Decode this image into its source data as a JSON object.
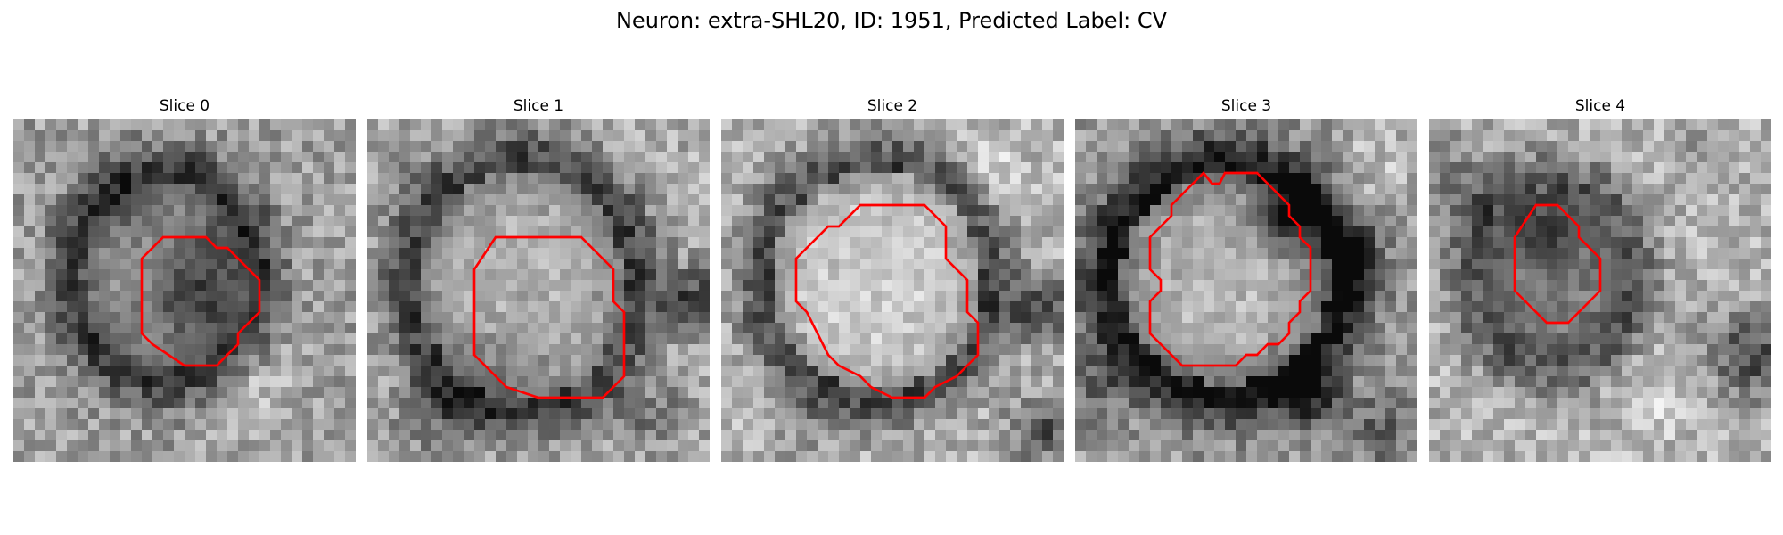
{
  "figure": {
    "title": "Neuron: extra-SHL20, ID: 1951, Predicted Label: CV"
  },
  "slices": [
    {
      "title": "Slice 0",
      "contour_color": "#ff0000",
      "shade": "gray"
    },
    {
      "title": "Slice 1",
      "contour_color": "#ff0000",
      "shade": "gray"
    },
    {
      "title": "Slice 2",
      "contour_color": "#ff0000",
      "shade": "gray"
    },
    {
      "title": "Slice 3",
      "contour_color": "#ff0000",
      "shade": "gray"
    },
    {
      "title": "Slice 4",
      "contour_color": "#ff0000",
      "shade": "gray"
    }
  ]
}
